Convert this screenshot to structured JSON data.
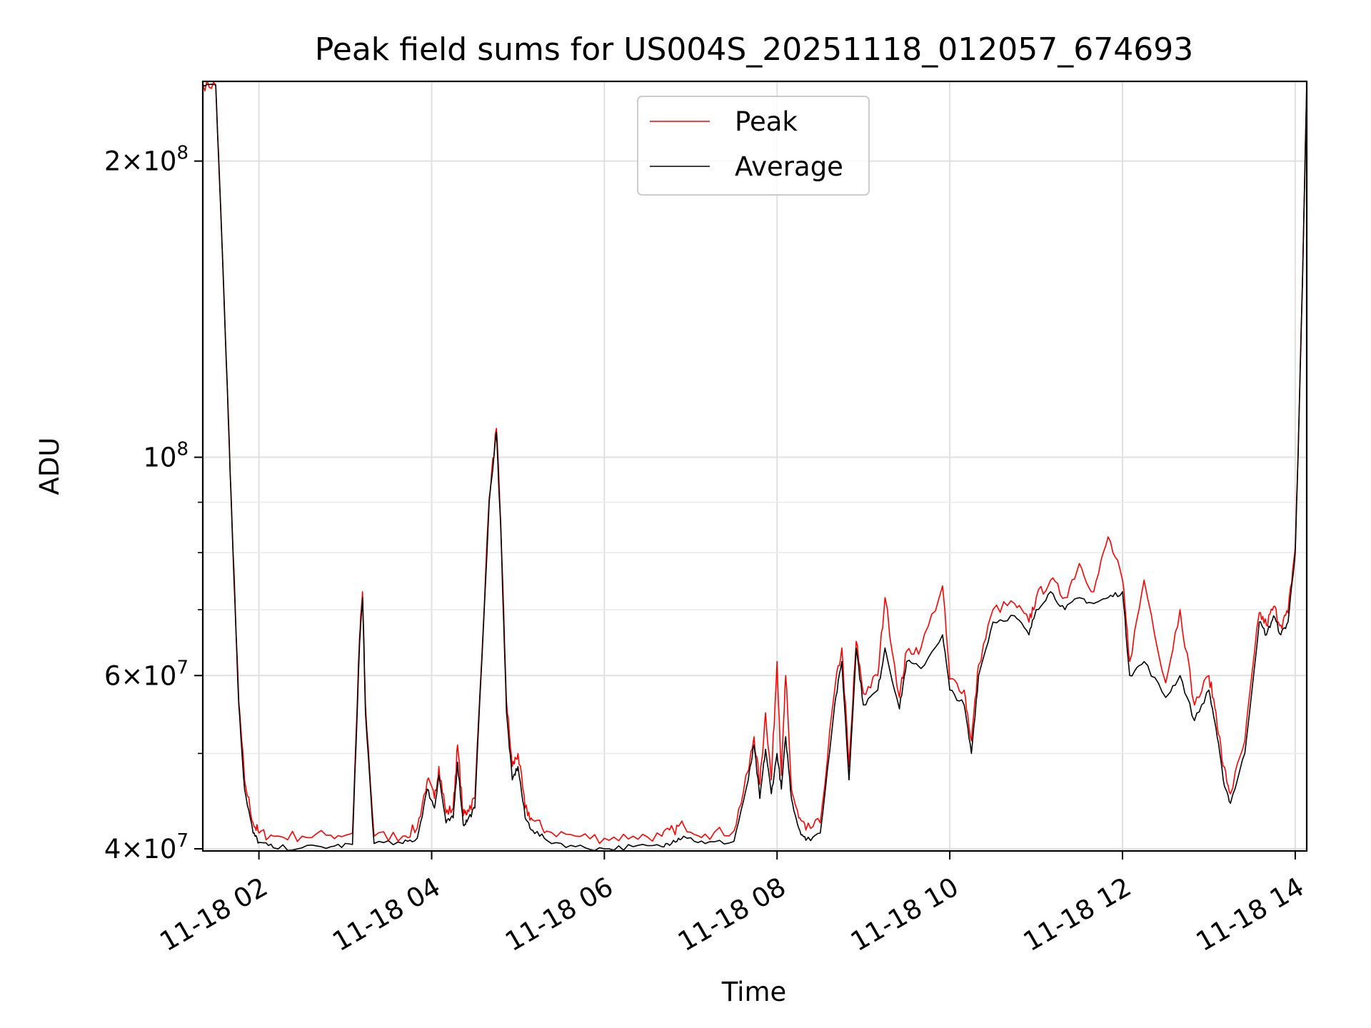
{
  "chart_data": {
    "type": "line",
    "title": "Peak field sums for US004S_20251118_012057_674693",
    "xlabel": "Time",
    "ylabel": "ADU",
    "yscale": "log",
    "ylim": [
      39800000,
      241000000
    ],
    "xlim": [
      "2025-11-18 01:21",
      "2025-11-18 14:08"
    ],
    "grid": true,
    "legend_position": "top-center",
    "x_ticks": [
      "11-18 02",
      "11-18 04",
      "11-18 06",
      "11-18 08",
      "11-18 10",
      "11-18 12",
      "11-18 14"
    ],
    "y_ticks_major": [
      {
        "value": 40000000,
        "mantissa": "4",
        "exponent": "7"
      },
      {
        "value": 60000000,
        "mantissa": "6",
        "exponent": "7"
      },
      {
        "value": 100000000,
        "mantissa": "",
        "exponent": "8"
      },
      {
        "value": 200000000,
        "mantissa": "2",
        "exponent": "8"
      }
    ],
    "y_ticks_minor": [
      50000000,
      70000000,
      80000000,
      90000000
    ],
    "series": [
      {
        "name": "Peak",
        "color": "#ff0000"
      },
      {
        "name": "Average",
        "color": "#000000"
      }
    ],
    "x": [
      "01:21",
      "01:30",
      "01:34",
      "01:38",
      "01:42",
      "01:46",
      "01:50",
      "01:56",
      "02:00",
      "02:10",
      "02:30",
      "02:50",
      "03:05",
      "03:10",
      "03:12",
      "03:14",
      "03:20",
      "03:40",
      "03:50",
      "03:57",
      "04:02",
      "04:05",
      "04:10",
      "04:15",
      "04:18",
      "04:22",
      "04:25",
      "04:30",
      "04:40",
      "04:45",
      "04:48",
      "04:52",
      "04:56",
      "05:00",
      "05:05",
      "05:10",
      "05:20",
      "05:40",
      "06:00",
      "06:20",
      "06:40",
      "06:48",
      "06:55",
      "07:10",
      "07:30",
      "07:40",
      "07:44",
      "07:48",
      "07:52",
      "07:56",
      "08:00",
      "08:03",
      "08:06",
      "08:10",
      "08:15",
      "08:20",
      "08:30",
      "08:40",
      "08:45",
      "08:50",
      "08:55",
      "09:00",
      "09:10",
      "09:15",
      "09:25",
      "09:30",
      "09:40",
      "09:55",
      "10:00",
      "10:10",
      "10:15",
      "10:20",
      "10:30",
      "10:45",
      "10:55",
      "11:00",
      "11:10",
      "11:20",
      "11:30",
      "11:40",
      "11:50",
      "12:00",
      "12:05",
      "12:15",
      "12:30",
      "12:40",
      "12:50",
      "13:00",
      "13:05",
      "13:10",
      "13:15",
      "13:25",
      "13:35",
      "13:40",
      "13:45",
      "13:50",
      "13:55",
      "14:00",
      "14:02",
      "14:05",
      "14:08"
    ],
    "series_values": {
      "Average": [
        239000000,
        239000000,
        170000000,
        118000000,
        80000000,
        56000000,
        46000000,
        41500000,
        40600000,
        40100000,
        40100000,
        40200000,
        40400000,
        65000000,
        72000000,
        55000000,
        40500000,
        40500000,
        41000000,
        46000000,
        44000000,
        47500000,
        42500000,
        43000000,
        49000000,
        42300000,
        42800000,
        44000000,
        90000000,
        106000000,
        85000000,
        55000000,
        47000000,
        48500000,
        43000000,
        41800000,
        40800000,
        40200000,
        40000000,
        40200000,
        40200000,
        40800000,
        41200000,
        40500000,
        40700000,
        47000000,
        51000000,
        45000000,
        50500000,
        45500000,
        50000000,
        46000000,
        52000000,
        45000000,
        42000000,
        40800000,
        41500000,
        56000000,
        62000000,
        47000000,
        64000000,
        56000000,
        58000000,
        64000000,
        55500000,
        62000000,
        61000000,
        66000000,
        58000000,
        56000000,
        50000000,
        60000000,
        68000000,
        69000000,
        66000000,
        70000000,
        73000000,
        70000000,
        72000000,
        71000000,
        72000000,
        73000000,
        60000000,
        62000000,
        57000000,
        60000000,
        54000000,
        58000000,
        53000000,
        47000000,
        44500000,
        50000000,
        68000000,
        66000000,
        69000000,
        66000000,
        68000000,
        80000000,
        100000000,
        150000000,
        239000000
      ],
      "Peak": [
        239000000,
        239000000,
        170000000,
        118000000,
        80500000,
        56500000,
        47000000,
        42500000,
        41500000,
        41200000,
        41200000,
        41300000,
        41500000,
        66000000,
        73000000,
        56000000,
        41200000,
        41200000,
        42000000,
        47000000,
        45000000,
        48500000,
        43500000,
        44000000,
        51000000,
        43200000,
        43800000,
        45000000,
        91000000,
        107000000,
        86000000,
        56500000,
        48500000,
        50000000,
        44000000,
        42800000,
        41700000,
        41200000,
        41000000,
        41200000,
        41200000,
        41800000,
        42300000,
        41400000,
        41700000,
        48000000,
        52000000,
        46500000,
        55000000,
        47000000,
        62000000,
        47500000,
        60000000,
        46000000,
        43000000,
        41800000,
        42500000,
        58000000,
        64000000,
        48500000,
        65000000,
        57500000,
        60000000,
        72000000,
        57000000,
        63500000,
        64000000,
        74000000,
        59500000,
        58000000,
        51500000,
        61500000,
        70000000,
        71000000,
        68000000,
        72000000,
        75000000,
        72000000,
        78000000,
        73000000,
        83000000,
        75000000,
        62000000,
        75000000,
        59000000,
        70000000,
        56000000,
        60000000,
        55000000,
        48500000,
        45500000,
        51500000,
        69500000,
        67500000,
        70500000,
        67500000,
        69500000,
        81000000,
        101000000,
        151000000,
        239000000
      ]
    }
  }
}
